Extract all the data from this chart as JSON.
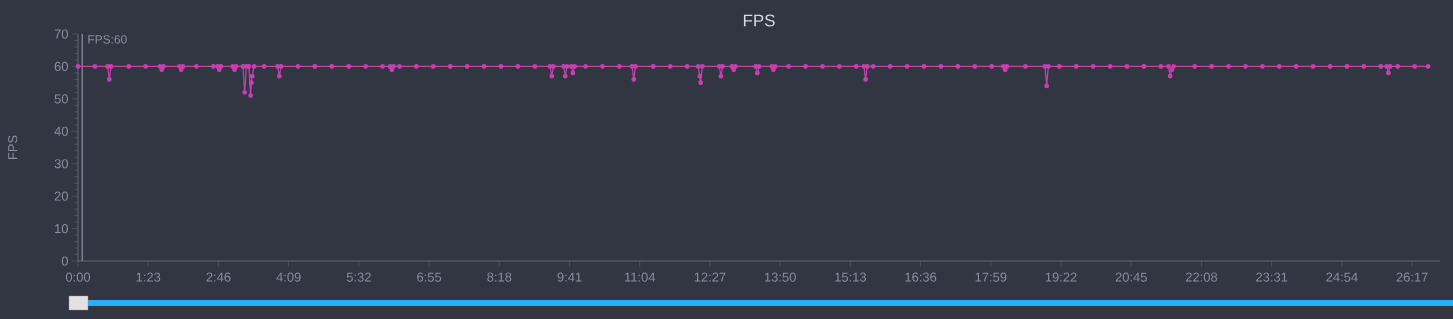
{
  "chart_data": {
    "type": "line",
    "title": "FPS",
    "ylabel": "FPS",
    "xlim": [
      0,
      1610
    ],
    "ylim": [
      0,
      70
    ],
    "yticks": [
      0,
      10,
      20,
      30,
      40,
      50,
      60,
      70
    ],
    "xticks": [
      {
        "value": 0,
        "label": "0:00"
      },
      {
        "value": 83,
        "label": "1:23"
      },
      {
        "value": 166,
        "label": "2:46"
      },
      {
        "value": 249,
        "label": "4:09"
      },
      {
        "value": 332,
        "label": "5:32"
      },
      {
        "value": 415,
        "label": "6:55"
      },
      {
        "value": 498,
        "label": "8:18"
      },
      {
        "value": 581,
        "label": "9:41"
      },
      {
        "value": 664,
        "label": "11:04"
      },
      {
        "value": 747,
        "label": "12:27"
      },
      {
        "value": 830,
        "label": "13:50"
      },
      {
        "value": 913,
        "label": "15:13"
      },
      {
        "value": 996,
        "label": "16:36"
      },
      {
        "value": 1079,
        "label": "17:59"
      },
      {
        "value": 1162,
        "label": "19:22"
      },
      {
        "value": 1245,
        "label": "20:45"
      },
      {
        "value": 1328,
        "label": "22:08"
      },
      {
        "value": 1411,
        "label": "23:31"
      },
      {
        "value": 1494,
        "label": "24:54"
      },
      {
        "value": 1577,
        "label": "26:17"
      }
    ],
    "ref_lines": [
      {
        "axis": "x",
        "value": 5,
        "color": "#8a90a8"
      }
    ],
    "annotations": [
      "FPS:60"
    ],
    "marker": "circle",
    "line_style": "solid",
    "grid": false,
    "series": [
      {
        "color": "#c641b0",
        "x": [
          0,
          20,
          35,
          37,
          39,
          60,
          80,
          97,
          99,
          101,
          120,
          122,
          124,
          140,
          160,
          165,
          167,
          169,
          183,
          185,
          187,
          195,
          197,
          199,
          202,
          204,
          205,
          206,
          208,
          220,
          236,
          238,
          240,
          260,
          280,
          300,
          320,
          340,
          360,
          369,
          371,
          373,
          380,
          400,
          420,
          440,
          460,
          480,
          500,
          520,
          540,
          558,
          560,
          562,
          574,
          576,
          578,
          583,
          585,
          587,
          600,
          620,
          640,
          655,
          657,
          659,
          680,
          700,
          720,
          733,
          735,
          736,
          738,
          758,
          760,
          762,
          773,
          775,
          777,
          801,
          803,
          805,
          820,
          822,
          824,
          840,
          860,
          880,
          900,
          920,
          929,
          931,
          933,
          940,
          960,
          980,
          1000,
          1020,
          1040,
          1060,
          1080,
          1094,
          1096,
          1098,
          1120,
          1143,
          1145,
          1147,
          1160,
          1180,
          1200,
          1220,
          1240,
          1260,
          1280,
          1289,
          1291,
          1293,
          1295,
          1320,
          1340,
          1360,
          1380,
          1400,
          1420,
          1440,
          1460,
          1480,
          1500,
          1520,
          1540,
          1547,
          1549,
          1551,
          1560,
          1580,
          1596
        ],
        "values": [
          60,
          60,
          60,
          56,
          60,
          60,
          60,
          60,
          59,
          60,
          60,
          59,
          60,
          60,
          60,
          60,
          59,
          60,
          60,
          59,
          60,
          60,
          52,
          60,
          60,
          51,
          55,
          57,
          60,
          60,
          60,
          57,
          60,
          60,
          60,
          60,
          60,
          60,
          60,
          60,
          59,
          60,
          60,
          60,
          60,
          60,
          60,
          60,
          60,
          60,
          60,
          60,
          57,
          60,
          60,
          57,
          60,
          60,
          58,
          60,
          60,
          60,
          60,
          60,
          56,
          60,
          60,
          60,
          60,
          60,
          57,
          55,
          60,
          60,
          57,
          60,
          60,
          59,
          60,
          60,
          58,
          60,
          60,
          59,
          60,
          60,
          60,
          60,
          60,
          60,
          60,
          56,
          60,
          60,
          60,
          60,
          60,
          60,
          60,
          60,
          60,
          60,
          59,
          60,
          60,
          60,
          54,
          60,
          60,
          60,
          60,
          60,
          60,
          60,
          60,
          60,
          57,
          59,
          60,
          60,
          60,
          60,
          60,
          60,
          60,
          60,
          60,
          60,
          60,
          60,
          60,
          60,
          58,
          60,
          60,
          60,
          60
        ]
      }
    ]
  }
}
